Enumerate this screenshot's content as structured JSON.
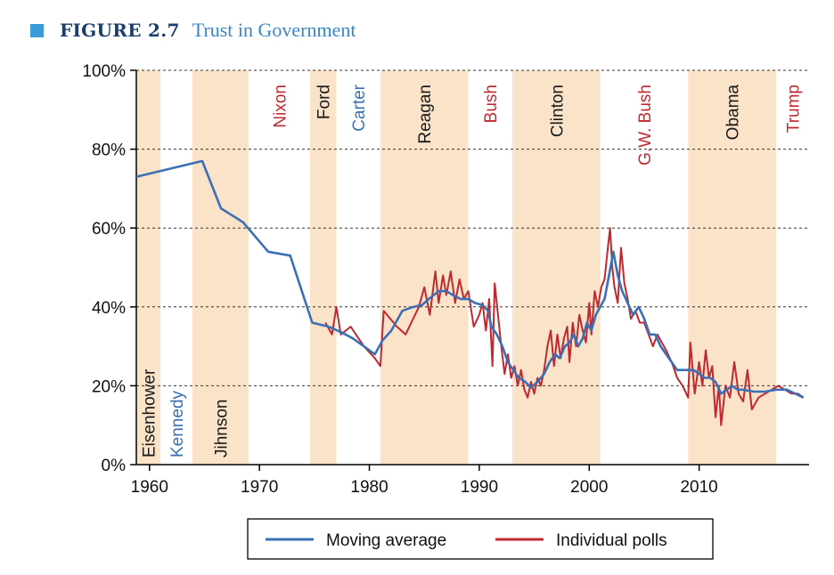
{
  "figure": {
    "label": "FIGURE 2.7",
    "title": "Trust in Government",
    "accent_color": "#3a9bd8"
  },
  "chart_data": {
    "type": "line",
    "title": "Trust in Government",
    "xlabel": "",
    "ylabel": "",
    "xlim": [
      1958.8,
      2020
    ],
    "ylim": [
      0,
      100
    ],
    "y_ticks": [
      "0%",
      "20%",
      "40%",
      "60%",
      "80%",
      "100%"
    ],
    "y_tick_values": [
      0,
      20,
      40,
      60,
      80,
      100
    ],
    "x_ticks": [
      "1960",
      "1970",
      "1980",
      "1990",
      "2000",
      "2010"
    ],
    "x_tick_values": [
      1960,
      1970,
      1980,
      1990,
      2000,
      2010
    ],
    "grid": "horizontal dashed",
    "legend_position": "bottom",
    "colors": {
      "moving_average": "#3b6fb6",
      "individual_polls": "#c0292f",
      "term_shading": "#fbe3c9"
    },
    "presidents": [
      {
        "name": "Eisenhower",
        "start": 1958.8,
        "end": 1961,
        "color": "#1a1a1a",
        "shaded": true
      },
      {
        "name": "Kennedy",
        "start": 1961,
        "end": 1963.9,
        "color": "#3b6fb6",
        "shaded": false
      },
      {
        "name": "Jihnson",
        "start": 1963.9,
        "end": 1969,
        "color": "#1a1a1a",
        "shaded": true
      },
      {
        "name": "Nixon",
        "start": 1969,
        "end": 1974.6,
        "color": "#c0292f",
        "shaded": false
      },
      {
        "name": "Ford",
        "start": 1974.6,
        "end": 1977,
        "color": "#1a1a1a",
        "shaded": true
      },
      {
        "name": "Carter",
        "start": 1977,
        "end": 1981,
        "color": "#3b6fb6",
        "shaded": false
      },
      {
        "name": "Reagan",
        "start": 1981,
        "end": 1989,
        "color": "#1a1a1a",
        "shaded": true
      },
      {
        "name": "Bush",
        "start": 1989,
        "end": 1993,
        "color": "#c0292f",
        "shaded": false
      },
      {
        "name": "Clinton",
        "start": 1993,
        "end": 2001,
        "color": "#1a1a1a",
        "shaded": true
      },
      {
        "name": "G.W. Bush",
        "start": 2001,
        "end": 2009,
        "color": "#c0292f",
        "shaded": false
      },
      {
        "name": "Obama",
        "start": 2009,
        "end": 2017,
        "color": "#1a1a1a",
        "shaded": true
      },
      {
        "name": "Trump",
        "start": 2017,
        "end": 2020,
        "color": "#c0292f",
        "shaded": false
      }
    ],
    "series": [
      {
        "name": "Moving average",
        "x": [
          1958.8,
          1964.8,
          1966.5,
          1968.5,
          1970.8,
          1972.8,
          1974.8,
          1976.3,
          1977.5,
          1978.5,
          1979.5,
          1980.5,
          1981.2,
          1982,
          1983,
          1984,
          1984.8,
          1985.4,
          1986.3,
          1987,
          1987.6,
          1988.3,
          1989,
          1989.6,
          1990.3,
          1990.8,
          1991.1,
          1991.6,
          1992.1,
          1992.6,
          1993.1,
          1993.6,
          1994.2,
          1994.7,
          1995.3,
          1995.9,
          1996.4,
          1996.9,
          1997.3,
          1997.8,
          1998.2,
          1998.6,
          1999,
          1999.4,
          1999.8,
          2000.2,
          2000.6,
          2001,
          2001.4,
          2001.8,
          2002.2,
          2002.6,
          2003,
          2003.5,
          2004,
          2004.5,
          2005,
          2005.5,
          2006,
          2006.5,
          2007,
          2008,
          2009,
          2009.5,
          2010,
          2010.5,
          2011,
          2011.5,
          2012,
          2012.5,
          2013,
          2013.5,
          2014,
          2015,
          2016,
          2017,
          2018,
          2019.5
        ],
        "y": [
          73,
          77,
          65,
          61.5,
          54,
          53,
          36,
          35,
          33.5,
          32,
          30,
          28,
          31.5,
          34,
          39,
          40,
          40.5,
          42,
          44,
          44,
          43,
          42,
          42,
          41,
          40.5,
          39,
          35,
          33,
          30,
          26,
          24,
          22,
          21,
          19.5,
          21,
          23,
          26,
          28,
          27,
          30,
          31,
          33,
          30,
          32,
          36,
          34,
          38,
          40,
          42,
          48,
          54,
          48,
          44,
          41,
          38,
          40,
          37,
          33,
          33,
          30,
          28,
          24,
          24,
          24,
          23,
          22,
          22,
          21,
          18,
          19,
          20,
          19,
          19,
          18.5,
          18.5,
          19,
          19,
          17
        ]
      },
      {
        "name": "Individual polls",
        "x": [
          1976,
          1976.6,
          1977,
          1977.4,
          1978.3,
          1979.5,
          1980.5,
          1981,
          1981.3,
          1982.5,
          1983.3,
          1984.5,
          1985,
          1985.5,
          1986,
          1986.3,
          1986.7,
          1987,
          1987.4,
          1987.8,
          1988.2,
          1988.6,
          1989,
          1989.5,
          1990,
          1990.3,
          1990.6,
          1990.9,
          1991.2,
          1991.4,
          1991.7,
          1992,
          1992.3,
          1992.6,
          1992.9,
          1993.2,
          1993.5,
          1993.8,
          1994.1,
          1994.4,
          1994.7,
          1995,
          1995.3,
          1995.6,
          1995.9,
          1996.2,
          1996.5,
          1996.8,
          1997.1,
          1997.4,
          1997.7,
          1998,
          1998.2,
          1998.5,
          1998.8,
          1999.1,
          1999.4,
          1999.7,
          2000,
          2000.2,
          2000.5,
          2000.8,
          2001.1,
          2001.4,
          2001.7,
          2001.9,
          2002.1,
          2002.3,
          2002.6,
          2002.9,
          2003.2,
          2003.5,
          2003.8,
          2004.2,
          2004.6,
          2005,
          2005.4,
          2005.8,
          2006.2,
          2006.6,
          2007,
          2007.5,
          2008,
          2008.5,
          2009,
          2009.2,
          2009.6,
          2010,
          2010.3,
          2010.6,
          2010.9,
          2011.2,
          2011.5,
          2011.8,
          2012,
          2012.4,
          2012.8,
          2013.2,
          2013.6,
          2014,
          2014.4,
          2014.8,
          2015.4,
          2016,
          2016.6,
          2017.2,
          2017.8,
          2018.4,
          2019,
          2019.5
        ],
        "y": [
          36,
          33,
          40,
          33,
          35,
          30,
          27,
          25,
          39,
          35,
          33,
          40,
          45,
          38,
          49,
          41,
          48,
          43,
          49,
          41,
          47,
          42,
          44,
          35,
          38,
          41,
          34,
          42,
          25,
          46,
          38,
          30,
          23,
          28,
          22,
          25,
          20,
          24,
          19,
          17,
          21,
          18,
          22,
          20,
          24,
          30,
          34,
          25,
          33,
          27,
          32,
          35,
          26,
          36,
          30,
          38,
          34,
          31,
          41,
          33,
          44,
          40,
          45,
          47,
          55,
          60,
          50,
          45,
          41,
          55,
          46,
          42,
          37,
          39,
          36,
          36,
          33,
          30,
          33,
          31,
          29,
          26,
          22,
          20,
          17,
          31,
          18,
          26,
          20,
          29,
          22,
          25,
          12,
          20,
          10,
          20,
          17,
          26,
          18,
          16,
          24,
          14,
          17,
          18,
          19,
          20,
          19,
          18,
          18,
          17
        ]
      }
    ]
  }
}
